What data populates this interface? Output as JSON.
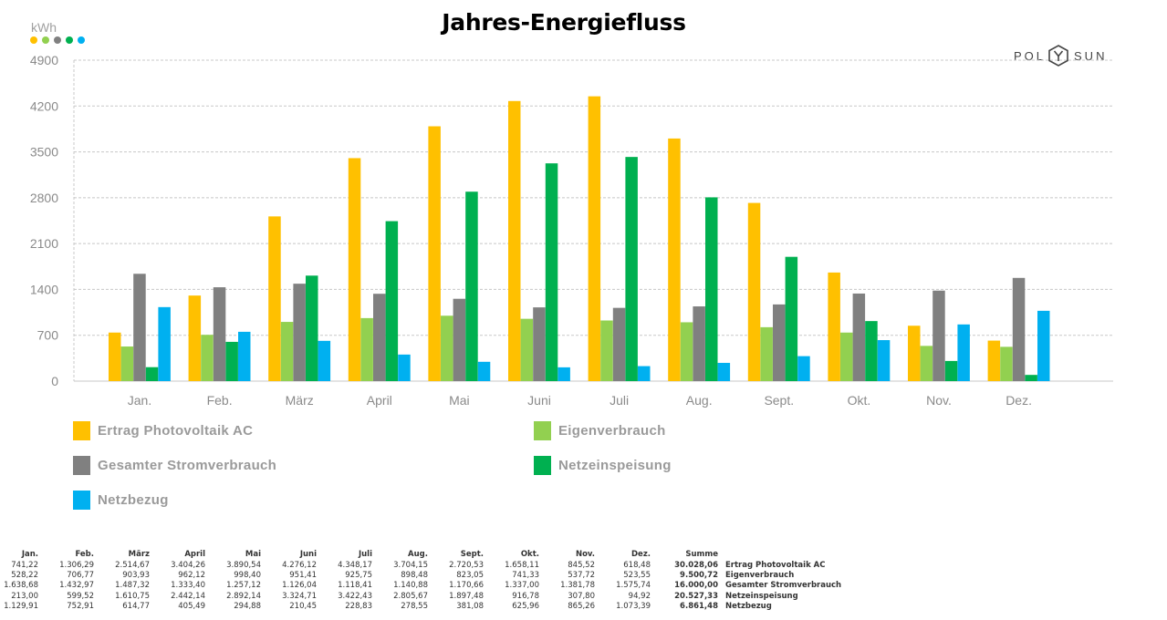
{
  "title": "Jahres-Energiefluss",
  "brand": {
    "left": "POL",
    "right": "SUN",
    "icon": "polysun-logo-icon"
  },
  "chart_data": {
    "type": "bar",
    "title": "Jahres-Energiefluss",
    "ylabel": "kWh",
    "xlabel": "",
    "ylim": [
      0,
      4900
    ],
    "yticks": [
      0,
      700,
      1400,
      2100,
      2800,
      3500,
      4200,
      4900
    ],
    "grid": true,
    "legend_position": "bottom",
    "categories": [
      "Jan.",
      "Feb.",
      "März",
      "April",
      "Mai",
      "Juni",
      "Juli",
      "Aug.",
      "Sept.",
      "Okt.",
      "Nov.",
      "Dez."
    ],
    "series": [
      {
        "name": "Ertrag Photovoltaik AC",
        "color": "#FFC000",
        "values": [
          741.22,
          1306.29,
          2514.67,
          3404.26,
          3890.54,
          4276.12,
          4348.17,
          3704.15,
          2720.53,
          1658.11,
          845.52,
          618.48
        ]
      },
      {
        "name": "Eigenverbrauch",
        "color": "#92D050",
        "values": [
          528.22,
          706.77,
          903.93,
          962.12,
          998.4,
          951.41,
          925.75,
          898.48,
          823.05,
          741.33,
          537.72,
          523.55
        ]
      },
      {
        "name": "Gesamter Stromverbrauch",
        "color": "#808080",
        "values": [
          1638.68,
          1432.97,
          1487.32,
          1333.4,
          1257.12,
          1126.04,
          1118.41,
          1140.88,
          1170.66,
          1337.0,
          1381.78,
          1575.74
        ]
      },
      {
        "name": "Netzeinspeisung",
        "color": "#00B050",
        "values": [
          213.0,
          599.52,
          1610.75,
          2442.14,
          2892.14,
          3324.71,
          3422.43,
          2805.67,
          1897.48,
          916.78,
          307.8,
          94.92
        ]
      },
      {
        "name": "Netzbezug",
        "color": "#00B0F0",
        "values": [
          1129.91,
          752.91,
          614.77,
          405.49,
          294.88,
          210.45,
          228.83,
          278.55,
          381.08,
          625.96,
          865.26,
          1073.39
        ]
      }
    ]
  },
  "table": {
    "header": [
      "Jan.",
      "Feb.",
      "März",
      "April",
      "Mai",
      "Juni",
      "Juli",
      "Aug.",
      "Sept.",
      "Okt.",
      "Nov.",
      "Dez.",
      "Summe"
    ],
    "rows": [
      {
        "cells": [
          "741,22",
          "1.306,29",
          "2.514,67",
          "3.404,26",
          "3.890,54",
          "4.276,12",
          "4.348,17",
          "3.704,15",
          "2.720,53",
          "1.658,11",
          "845,52",
          "618,48",
          "30.028,06"
        ],
        "label": "Ertrag Photovoltaik AC"
      },
      {
        "cells": [
          "528,22",
          "706,77",
          "903,93",
          "962,12",
          "998,40",
          "951,41",
          "925,75",
          "898,48",
          "823,05",
          "741,33",
          "537,72",
          "523,55",
          "9.500,72"
        ],
        "label": "Eigenverbrauch"
      },
      {
        "cells": [
          "1.638,68",
          "1.432,97",
          "1.487,32",
          "1.333,40",
          "1.257,12",
          "1.126,04",
          "1.118,41",
          "1.140,88",
          "1.170,66",
          "1.337,00",
          "1.381,78",
          "1.575,74",
          "16.000,00"
        ],
        "label": "Gesamter Stromverbrauch"
      },
      {
        "cells": [
          "213,00",
          "599,52",
          "1.610,75",
          "2.442,14",
          "2.892,14",
          "3.324,71",
          "3.422,43",
          "2.805,67",
          "1.897,48",
          "916,78",
          "307,80",
          "94,92",
          "20.527,33"
        ],
        "label": "Netzeinspeisung"
      },
      {
        "cells": [
          "1.129,91",
          "752,91",
          "614,77",
          "405,49",
          "294,88",
          "210,45",
          "228,83",
          "278,55",
          "381,08",
          "625,96",
          "865,26",
          "1.073,39",
          "6.861,48"
        ],
        "label": "Netzbezug"
      }
    ]
  }
}
